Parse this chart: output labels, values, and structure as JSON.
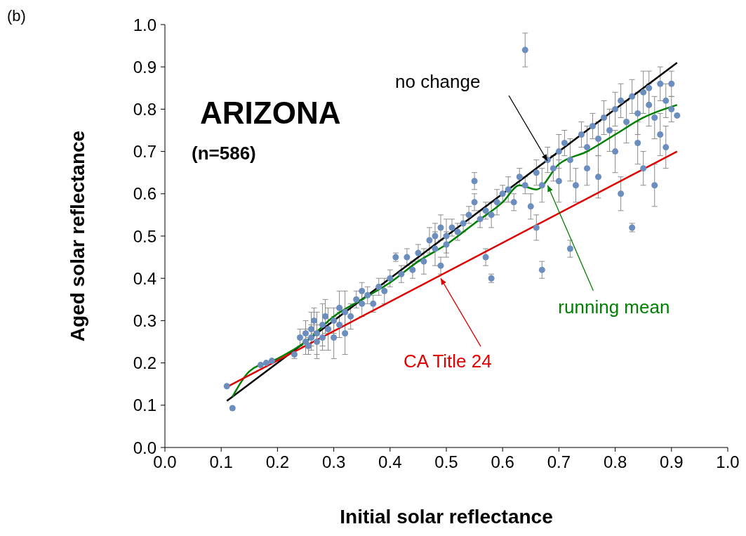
{
  "chart_data": {
    "type": "scatter",
    "xlabel": "Initial solar reflectance",
    "ylabel": "Aged solar reflectance",
    "xlim": [
      0,
      1
    ],
    "ylim": [
      0,
      1
    ],
    "xticks": [
      {
        "value": 0,
        "label": "0.0"
      },
      {
        "value": 0.1,
        "label": "0.1"
      },
      {
        "value": 0.2,
        "label": "0.2"
      },
      {
        "value": 0.3,
        "label": "0.3"
      },
      {
        "value": 0.4,
        "label": "0.4"
      },
      {
        "value": 0.5,
        "label": "0.5"
      },
      {
        "value": 0.6,
        "label": "0.6"
      },
      {
        "value": 0.7,
        "label": "0.7"
      },
      {
        "value": 0.8,
        "label": "0.8"
      },
      {
        "value": 0.9,
        "label": "0.9"
      },
      {
        "value": 1,
        "label": "1.0"
      }
    ],
    "yticks": [
      {
        "value": 0,
        "label": "0.0"
      },
      {
        "value": 0.1,
        "label": "0.1"
      },
      {
        "value": 0.2,
        "label": "0.2"
      },
      {
        "value": 0.3,
        "label": "0.3"
      },
      {
        "value": 0.4,
        "label": "0.4"
      },
      {
        "value": 0.5,
        "label": "0.5"
      },
      {
        "value": 0.6,
        "label": "0.6"
      },
      {
        "value": 0.7,
        "label": "0.7"
      },
      {
        "value": 0.8,
        "label": "0.8"
      },
      {
        "value": 0.9,
        "label": "0.9"
      },
      {
        "value": 1,
        "label": "1.0"
      }
    ],
    "annotations": [
      "(b)",
      "ARIZONA",
      "(n=586)",
      "no change",
      {
        "text": "running mean",
        "x": 0.68,
        "y": 0.62
      },
      {
        "text": "CA Title 24",
        "x": 0.49,
        "y": 0.4
      }
    ],
    "series": [
      {
        "color": "#6c8ebf",
        "marker": "circle",
        "x": [
          0.11,
          0.12,
          0.17,
          0.18,
          0.19,
          0.23,
          0.24,
          0.25,
          0.25,
          0.255,
          0.26,
          0.26,
          0.265,
          0.27,
          0.27,
          0.28,
          0.28,
          0.285,
          0.29,
          0.3,
          0.3,
          0.31,
          0.31,
          0.32,
          0.32,
          0.33,
          0.34,
          0.35,
          0.35,
          0.36,
          0.37,
          0.38,
          0.39,
          0.4,
          0.41,
          0.42,
          0.43,
          0.44,
          0.45,
          0.46,
          0.47,
          0.48,
          0.48,
          0.49,
          0.49,
          0.5,
          0.5,
          0.51,
          0.52,
          0.53,
          0.54,
          0.55,
          0.55,
          0.56,
          0.57,
          0.57,
          0.58,
          0.58,
          0.59,
          0.6,
          0.61,
          0.62,
          0.63,
          0.64,
          0.64,
          0.65,
          0.66,
          0.66,
          0.67,
          0.67,
          0.68,
          0.69,
          0.7,
          0.7,
          0.71,
          0.72,
          0.72,
          0.73,
          0.74,
          0.75,
          0.75,
          0.76,
          0.77,
          0.77,
          0.78,
          0.79,
          0.8,
          0.8,
          0.81,
          0.81,
          0.82,
          0.83,
          0.83,
          0.84,
          0.84,
          0.85,
          0.85,
          0.86,
          0.86,
          0.87,
          0.87,
          0.88,
          0.88,
          0.89,
          0.89,
          0.9,
          0.9,
          0.91
        ],
        "values": [
          0.145,
          0.093,
          0.195,
          0.2,
          0.205,
          0.22,
          0.26,
          0.25,
          0.27,
          0.24,
          0.28,
          0.26,
          0.3,
          0.25,
          0.27,
          0.29,
          0.26,
          0.31,
          0.28,
          0.3,
          0.26,
          0.33,
          0.29,
          0.32,
          0.27,
          0.31,
          0.35,
          0.34,
          0.37,
          0.36,
          0.34,
          0.38,
          0.37,
          0.4,
          0.45,
          0.41,
          0.45,
          0.42,
          0.46,
          0.44,
          0.49,
          0.47,
          0.5,
          0.43,
          0.52,
          0.48,
          0.5,
          0.52,
          0.51,
          0.53,
          0.55,
          0.63,
          0.58,
          0.54,
          0.45,
          0.56,
          0.4,
          0.55,
          0.58,
          0.6,
          0.61,
          0.58,
          0.64,
          0.94,
          0.62,
          0.57,
          0.65,
          0.52,
          0.42,
          0.62,
          0.68,
          0.66,
          0.7,
          0.63,
          0.72,
          0.68,
          0.47,
          0.62,
          0.74,
          0.71,
          0.66,
          0.76,
          0.73,
          0.64,
          0.78,
          0.75,
          0.8,
          0.7,
          0.82,
          0.6,
          0.77,
          0.83,
          0.52,
          0.79,
          0.72,
          0.84,
          0.66,
          0.81,
          0.85,
          0.78,
          0.62,
          0.86,
          0.74,
          0.82,
          0.71,
          0.86,
          0.8,
          0.785
        ],
        "errors": [
          null,
          null,
          null,
          null,
          null,
          0.01,
          0.02,
          0.03,
          0.03,
          0.02,
          0.04,
          0.03,
          0.03,
          0.04,
          0.05,
          0.05,
          0.03,
          0.04,
          0.05,
          0.03,
          0.05,
          0.04,
          0.03,
          0.05,
          0.05,
          0.03,
          0.02,
          0.03,
          0.02,
          0.02,
          0.02,
          0.02,
          0.03,
          0.02,
          0.01,
          0.02,
          0.02,
          0.02,
          0.02,
          0.03,
          0.03,
          0.04,
          0.03,
          0.02,
          0.03,
          0.03,
          0.04,
          0.02,
          0.02,
          0.02,
          0.02,
          0.02,
          0.02,
          0.02,
          0.02,
          0.02,
          0.01,
          0.03,
          0.03,
          0.02,
          0.03,
          0.02,
          0.02,
          0.04,
          0.02,
          0.03,
          0.03,
          0.03,
          0.02,
          0.04,
          0.03,
          0.03,
          0.04,
          0.05,
          0.03,
          0.05,
          0.02,
          0.04,
          0.03,
          0.05,
          0.04,
          0.03,
          0.04,
          0.05,
          0.04,
          0.05,
          0.04,
          0.05,
          0.04,
          0.04,
          0.05,
          0.04,
          0.01,
          0.05,
          0.05,
          0.05,
          0.04,
          0.05,
          0.04,
          0.05,
          0.05,
          0.04,
          0.05,
          0.04,
          0.05,
          0.03,
          0.03,
          null
        ]
      },
      {
        "type": "line",
        "color": "#000000",
        "marker": "none",
        "x": [
          0.11,
          0.91
        ],
        "values": [
          0.11,
          0.91
        ]
      },
      {
        "type": "line",
        "color": "#008000",
        "marker": "none",
        "x": [
          0.12,
          0.15,
          0.2,
          0.25,
          0.3,
          0.35,
          0.4,
          0.45,
          0.5,
          0.55,
          0.6,
          0.63,
          0.66,
          0.7,
          0.75,
          0.8,
          0.85,
          0.91
        ],
        "values": [
          0.12,
          0.18,
          0.21,
          0.25,
          0.31,
          0.35,
          0.39,
          0.44,
          0.48,
          0.53,
          0.58,
          0.62,
          0.61,
          0.67,
          0.7,
          0.74,
          0.78,
          0.81
        ]
      },
      {
        "type": "line",
        "color": "#e00000",
        "marker": "none",
        "x": [
          0.11,
          0.91
        ],
        "values": [
          0.143,
          0.7
        ]
      }
    ]
  }
}
